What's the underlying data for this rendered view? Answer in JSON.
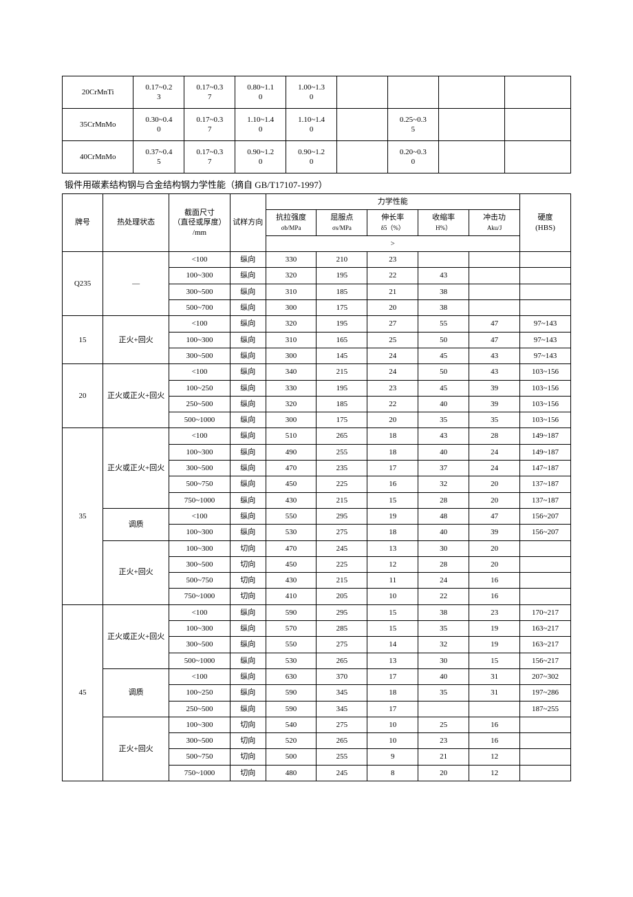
{
  "table1": {
    "columns_count": 9,
    "rows": [
      {
        "grade": "20CrMnTi",
        "c1": "0.17~0.23",
        "c2": "0.17~0.37",
        "c3": "0.80~1.10",
        "c4": "1.00~1.30",
        "c5": "",
        "c6": "",
        "c7": "",
        "c8": ""
      },
      {
        "grade": "35CrMnMo",
        "c1": "0.30~0.40",
        "c2": "0.17~0.37",
        "c3": "1.10~1.40",
        "c4": "1.10~1.40",
        "c5": "",
        "c6": "0.25~0.35",
        "c7": "",
        "c8": ""
      },
      {
        "grade": "40CrMnMo",
        "c1": "0.37~0.45",
        "c2": "0.17~0.37",
        "c3": "0.90~1.20",
        "c4": "0.90~1.20",
        "c5": "",
        "c6": "0.20~0.30",
        "c7": "",
        "c8": ""
      }
    ]
  },
  "table2_title": "锻件用碳素结构钢与合金结构钢力学性能（摘自 GB/T17107-1997）",
  "table2_headers": {
    "grade": "牌号",
    "heat": "热处理状态",
    "section": "截面尺寸",
    "section_sub": "（直径或厚度）",
    "section_unit": "/mm",
    "dir": "试样方向",
    "mech_group": "力学性能",
    "tensile": "抗拉强度",
    "tensile_sub": "σb/MPa",
    "yield": "屈服点",
    "yield_sub": "σs/MPa",
    "elong": "伸长率",
    "elong_sub": "δ5（%）",
    "redu": "收缩率",
    "redu_sub": "H%）",
    "impact": "冲击功",
    "impact_sub": "Aku/J",
    "hard": "硬度",
    "hard_sub": "(HBS)",
    "gte": ">"
  },
  "groups": [
    {
      "grade": "Q235",
      "grade_rowspan": 4,
      "treatments": [
        {
          "label": "—",
          "rowspan": 4,
          "rows": [
            {
              "section": "<100",
              "dir": "纵向",
              "t": "330",
              "y": "210",
              "e": "23",
              "r": "",
              "i": "",
              "h": ""
            },
            {
              "section": "100~300",
              "dir": "纵向",
              "t": "320",
              "y": "195",
              "e": "22",
              "r": "43",
              "i": "",
              "h": ""
            },
            {
              "section": "300~500",
              "dir": "纵向",
              "t": "310",
              "y": "185",
              "e": "21",
              "r": "38",
              "i": "",
              "h": ""
            },
            {
              "section": "500~700",
              "dir": "纵向",
              "t": "300",
              "y": "175",
              "e": "20",
              "r": "38",
              "i": "",
              "h": ""
            }
          ]
        }
      ]
    },
    {
      "grade": "15",
      "grade_rowspan": 3,
      "treatments": [
        {
          "label": "正火+回火",
          "rowspan": 3,
          "rows": [
            {
              "section": "<100",
              "dir": "纵向",
              "t": "320",
              "y": "195",
              "e": "27",
              "r": "55",
              "i": "47",
              "h": "97~143"
            },
            {
              "section": "100~300",
              "dir": "纵向",
              "t": "310",
              "y": "165",
              "e": "25",
              "r": "50",
              "i": "47",
              "h": "97~143"
            },
            {
              "section": "300~500",
              "dir": "纵向",
              "t": "300",
              "y": "145",
              "e": "24",
              "r": "45",
              "i": "43",
              "h": "97~143"
            }
          ]
        }
      ]
    },
    {
      "grade": "20",
      "grade_rowspan": 4,
      "treatments": [
        {
          "label": "正火或正火+回火",
          "rowspan": 4,
          "rows": [
            {
              "section": "<100",
              "dir": "纵向",
              "t": "340",
              "y": "215",
              "e": "24",
              "r": "50",
              "i": "43",
              "h": "103~156"
            },
            {
              "section": "100~250",
              "dir": "纵向",
              "t": "330",
              "y": "195",
              "e": "23",
              "r": "45",
              "i": "39",
              "h": "103~156"
            },
            {
              "section": "250~500",
              "dir": "纵向",
              "t": "320",
              "y": "185",
              "e": "22",
              "r": "40",
              "i": "39",
              "h": "103~156"
            },
            {
              "section": "500~1000",
              "dir": "纵向",
              "t": "300",
              "y": "175",
              "e": "20",
              "r": "35",
              "i": "35",
              "h": "103~156"
            }
          ]
        }
      ]
    },
    {
      "grade": "35",
      "grade_rowspan": 11,
      "treatments": [
        {
          "label": "正火或正火+回火",
          "rowspan": 5,
          "rows": [
            {
              "section": "<100",
              "dir": "纵向",
              "t": "510",
              "y": "265",
              "e": "18",
              "r": "43",
              "i": "28",
              "h": "149~187"
            },
            {
              "section": "100~300",
              "dir": "纵向",
              "t": "490",
              "y": "255",
              "e": "18",
              "r": "40",
              "i": "24",
              "h": "149~187"
            },
            {
              "section": "300~500",
              "dir": "纵向",
              "t": "470",
              "y": "235",
              "e": "17",
              "r": "37",
              "i": "24",
              "h": "147~187"
            },
            {
              "section": "500~750",
              "dir": "纵向",
              "t": "450",
              "y": "225",
              "e": "16",
              "r": "32",
              "i": "20",
              "h": "137~187"
            },
            {
              "section": "750~1000",
              "dir": "纵向",
              "t": "430",
              "y": "215",
              "e": "15",
              "r": "28",
              "i": "20",
              "h": "137~187"
            }
          ]
        },
        {
          "label": "调质",
          "rowspan": 2,
          "rows": [
            {
              "section": "<100",
              "dir": "纵向",
              "t": "550",
              "y": "295",
              "e": "19",
              "r": "48",
              "i": "47",
              "h": "156~207"
            },
            {
              "section": "100~300",
              "dir": "纵向",
              "t": "530",
              "y": "275",
              "e": "18",
              "r": "40",
              "i": "39",
              "h": "156~207"
            }
          ]
        },
        {
          "label": "正火+回火",
          "rowspan": 4,
          "rows": [
            {
              "section": "100~300",
              "dir": "切向",
              "t": "470",
              "y": "245",
              "e": "13",
              "r": "30",
              "i": "20",
              "h": ""
            },
            {
              "section": "300~500",
              "dir": "切向",
              "t": "450",
              "y": "225",
              "e": "12",
              "r": "28",
              "i": "20",
              "h": ""
            },
            {
              "section": "500~750",
              "dir": "切向",
              "t": "430",
              "y": "215",
              "e": "11",
              "r": "24",
              "i": "16",
              "h": ""
            },
            {
              "section": "750~1000",
              "dir": "切向",
              "t": "410",
              "y": "205",
              "e": "10",
              "r": "22",
              "i": "16",
              "h": ""
            }
          ]
        }
      ]
    },
    {
      "grade": "45",
      "grade_rowspan": 11,
      "treatments": [
        {
          "label": "正火或正火+回火",
          "rowspan": 4,
          "rows": [
            {
              "section": "<100",
              "dir": "纵向",
              "t": "590",
              "y": "295",
              "e": "15",
              "r": "38",
              "i": "23",
              "h": "170~217"
            },
            {
              "section": "100~300",
              "dir": "纵向",
              "t": "570",
              "y": "285",
              "e": "15",
              "r": "35",
              "i": "19",
              "h": "163~217"
            },
            {
              "section": "300~500",
              "dir": "纵向",
              "t": "550",
              "y": "275",
              "e": "14",
              "r": "32",
              "i": "19",
              "h": "163~217"
            },
            {
              "section": "500~1000",
              "dir": "纵向",
              "t": "530",
              "y": "265",
              "e": "13",
              "r": "30",
              "i": "15",
              "h": "156~217"
            }
          ]
        },
        {
          "label": "调质",
          "rowspan": 3,
          "rows": [
            {
              "section": "<100",
              "dir": "纵向",
              "t": "630",
              "y": "370",
              "e": "17",
              "r": "40",
              "i": "31",
              "h": "207~302"
            },
            {
              "section": "100~250",
              "dir": "纵向",
              "t": "590",
              "y": "345",
              "e": "18",
              "r": "35",
              "i": "31",
              "h": "197~286"
            },
            {
              "section": "250~500",
              "dir": "纵向",
              "t": "590",
              "y": "345",
              "e": "17",
              "r": "",
              "i": "",
              "h": "187~255"
            }
          ]
        },
        {
          "label": "正火+回火",
          "rowspan": 4,
          "rows": [
            {
              "section": "100~300",
              "dir": "切向",
              "t": "540",
              "y": "275",
              "e": "10",
              "r": "25",
              "i": "16",
              "h": ""
            },
            {
              "section": "300~500",
              "dir": "切向",
              "t": "520",
              "y": "265",
              "e": "10",
              "r": "23",
              "i": "16",
              "h": ""
            },
            {
              "section": "500~750",
              "dir": "切向",
              "t": "500",
              "y": "255",
              "e": "9",
              "r": "21",
              "i": "12",
              "h": ""
            },
            {
              "section": "750~1000",
              "dir": "切向",
              "t": "480",
              "y": "245",
              "e": "8",
              "r": "20",
              "i": "12",
              "h": ""
            }
          ]
        }
      ]
    }
  ]
}
